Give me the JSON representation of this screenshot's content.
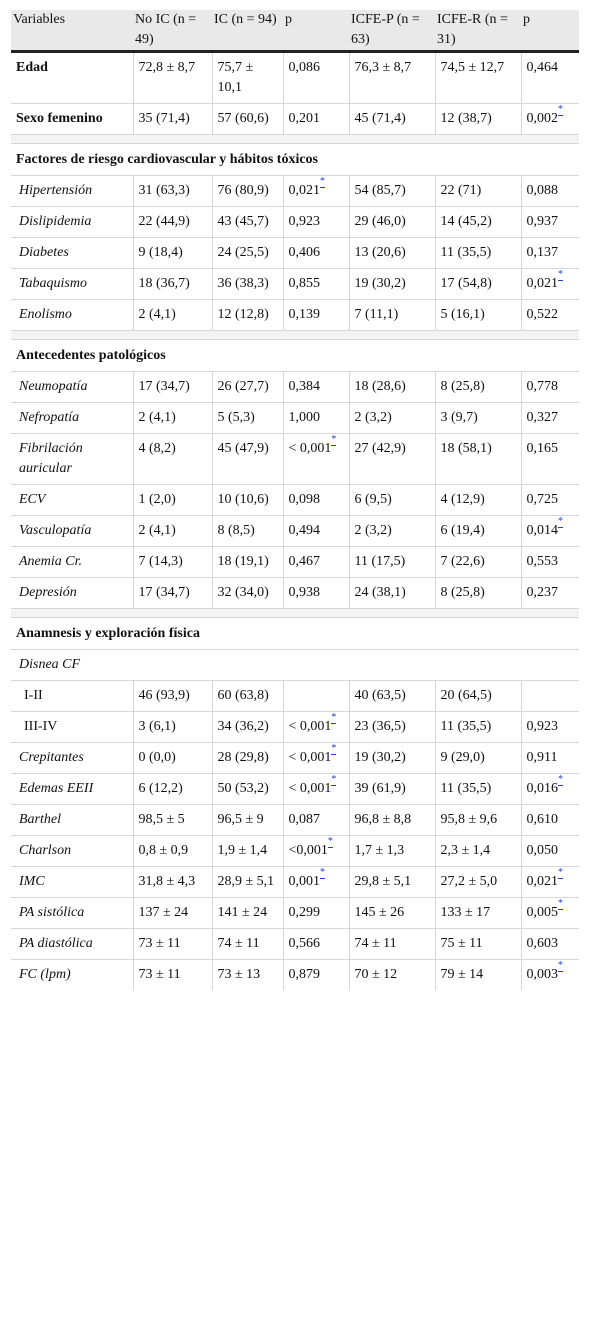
{
  "headers": [
    "Variables",
    "No IC (n = 49)",
    "IC (n = 94)",
    "p",
    "ICFE-P (n = 63)",
    "ICFE-R (n = 31)",
    "p"
  ],
  "rows": [
    {
      "kind": "data",
      "style": "bold",
      "cells": [
        "Edad",
        "72,8 ± 8,7",
        "75,7 ± 10,1",
        "0,086",
        "76,3 ± 8,7",
        "74,5 ± 12,7",
        "0,464"
      ],
      "sig": []
    },
    {
      "kind": "data",
      "style": "bold",
      "cells": [
        "Sexo femenino",
        "35 (71,4)",
        "57 (60,6)",
        "0,201",
        "45 (71,4)",
        "12 (38,7)",
        "0,002"
      ],
      "sig": [
        6
      ]
    },
    {
      "kind": "spacer"
    },
    {
      "kind": "section",
      "label": "Factores de riesgo cardiovascular y hábitos tóxicos"
    },
    {
      "kind": "data",
      "style": "ital",
      "cells": [
        "Hipertensión",
        "31 (63,3)",
        "76 (80,9)",
        "0,021",
        "54 (85,7)",
        "22 (71)",
        "0,088"
      ],
      "sig": [
        3
      ]
    },
    {
      "kind": "data",
      "style": "ital",
      "cells": [
        "Dislipidemia",
        "22 (44,9)",
        "43 (45,7)",
        "0,923",
        "29 (46,0)",
        "14 (45,2)",
        "0,937"
      ],
      "sig": []
    },
    {
      "kind": "data",
      "style": "ital",
      "cells": [
        "Diabetes",
        "9 (18,4)",
        "24 (25,5)",
        "0,406",
        "13 (20,6)",
        "11 (35,5)",
        "0,137"
      ],
      "sig": []
    },
    {
      "kind": "data",
      "style": "ital",
      "cells": [
        "Tabaquismo",
        "18 (36,7)",
        "36 (38,3)",
        "0,855",
        "19 (30,2)",
        "17 (54,8)",
        "0,021"
      ],
      "sig": [
        6
      ]
    },
    {
      "kind": "data",
      "style": "ital",
      "cells": [
        "Enolismo",
        "2 (4,1)",
        "12 (12,8)",
        "0,139",
        "7 (11,1)",
        "5 (16,1)",
        "0,522"
      ],
      "sig": []
    },
    {
      "kind": "spacer"
    },
    {
      "kind": "section",
      "label": "Antecedentes patológicos"
    },
    {
      "kind": "data",
      "style": "ital",
      "cells": [
        "Neumopatía",
        "17 (34,7)",
        "26 (27,7)",
        "0,384",
        "18 (28,6)",
        "8 (25,8)",
        "0,778"
      ],
      "sig": []
    },
    {
      "kind": "data",
      "style": "ital",
      "cells": [
        "Nefropatía",
        "2 (4,1)",
        "5 (5,3)",
        "1,000",
        "2 (3,2)",
        "3 (9,7)",
        "0,327"
      ],
      "sig": []
    },
    {
      "kind": "data",
      "style": "ital",
      "cells": [
        "Fibrilación auricular",
        "4 (8,2)",
        "45 (47,9)",
        "< 0,001",
        "27 (42,9)",
        "18 (58,1)",
        "0,165"
      ],
      "sig": [
        3
      ]
    },
    {
      "kind": "data",
      "style": "ital",
      "cells": [
        "ECV",
        "1 (2,0)",
        "10 (10,6)",
        "0,098",
        "6 (9,5)",
        "4 (12,9)",
        "0,725"
      ],
      "sig": []
    },
    {
      "kind": "data",
      "style": "ital",
      "cells": [
        "Vasculopatía",
        "2 (4,1)",
        "8 (8,5)",
        "0,494",
        "2 (3,2)",
        "6 (19,4)",
        "0,014"
      ],
      "sig": [
        6
      ]
    },
    {
      "kind": "data",
      "style": "ital",
      "cells": [
        "Anemia Cr.",
        "7 (14,3)",
        "18 (19,1)",
        "0,467",
        "11 (17,5)",
        "7 (22,6)",
        "0,553"
      ],
      "sig": []
    },
    {
      "kind": "data",
      "style": "ital",
      "cells": [
        "Depresión",
        "17 (34,7)",
        "32 (34,0)",
        "0,938",
        "24 (38,1)",
        "8 (25,8)",
        "0,237"
      ],
      "sig": []
    },
    {
      "kind": "spacer"
    },
    {
      "kind": "section",
      "label": "Anamnesis y exploración física"
    },
    {
      "kind": "subhead",
      "label": "Disnea CF"
    },
    {
      "kind": "data",
      "style": "sub",
      "cells": [
        "I-II",
        "46 (93,9)",
        "60 (63,8)",
        "",
        "40 (63,5)",
        "20 (64,5)",
        ""
      ],
      "sig": []
    },
    {
      "kind": "data",
      "style": "sub",
      "cells": [
        "III-IV",
        "3 (6,1)",
        "34 (36,2)",
        "< 0,001",
        "23 (36,5)",
        "11 (35,5)",
        "0,923"
      ],
      "sig": [
        3
      ]
    },
    {
      "kind": "data",
      "style": "ital",
      "cells": [
        "Crepitantes",
        "0 (0,0)",
        "28 (29,8)",
        "< 0,001",
        "19 (30,2)",
        "9 (29,0)",
        "0,911"
      ],
      "sig": [
        3
      ]
    },
    {
      "kind": "data",
      "style": "ital",
      "cells": [
        "Edemas EEII",
        "6 (12,2)",
        "50 (53,2)",
        "< 0,001",
        "39 (61,9)",
        "11 (35,5)",
        "0,016"
      ],
      "sig": [
        3,
        6
      ]
    },
    {
      "kind": "data",
      "style": "ital",
      "cells": [
        "Barthel",
        "98,5 ± 5",
        "96,5 ± 9",
        "0,087",
        "96,8 ± 8,8",
        "95,8 ± 9,6",
        "0,610"
      ],
      "sig": []
    },
    {
      "kind": "data",
      "style": "ital",
      "cells": [
        "Charlson",
        "0,8 ± 0,9",
        "1,9 ± 1,4",
        "<0,001",
        "1,7 ± 1,3",
        "2,3 ± 1,4",
        "0,050"
      ],
      "sig": [
        3
      ]
    },
    {
      "kind": "data",
      "style": "ital",
      "cells": [
        "IMC",
        "31,8 ± 4,3",
        "28,9 ± 5,1",
        "0,001",
        "29,8 ± 5,1",
        "27,2 ± 5,0",
        "0,021"
      ],
      "sig": [
        3,
        6
      ]
    },
    {
      "kind": "data",
      "style": "ital",
      "cells": [
        "PA sistólica",
        "137 ± 24",
        "141 ± 24",
        "0,299",
        "145 ± 26",
        "133 ± 17",
        "0,005"
      ],
      "sig": [
        6
      ]
    },
    {
      "kind": "data",
      "style": "ital",
      "cells": [
        "PA diastólica",
        "73 ± 11",
        "74 ± 11",
        "0,566",
        "74 ± 11",
        "75 ± 11",
        "0,603"
      ],
      "sig": []
    },
    {
      "kind": "data",
      "style": "ital",
      "cells": [
        "FC (lpm)",
        "73 ± 11",
        "73 ± 13",
        "0,879",
        "70 ± 12",
        "79 ± 14",
        "0,003"
      ],
      "sig": [
        6
      ]
    }
  ],
  "footnote_marker": "*",
  "colors": {
    "header_bg": "#e9e9e9",
    "link": "#2a3fc9",
    "rule": "#222222"
  }
}
